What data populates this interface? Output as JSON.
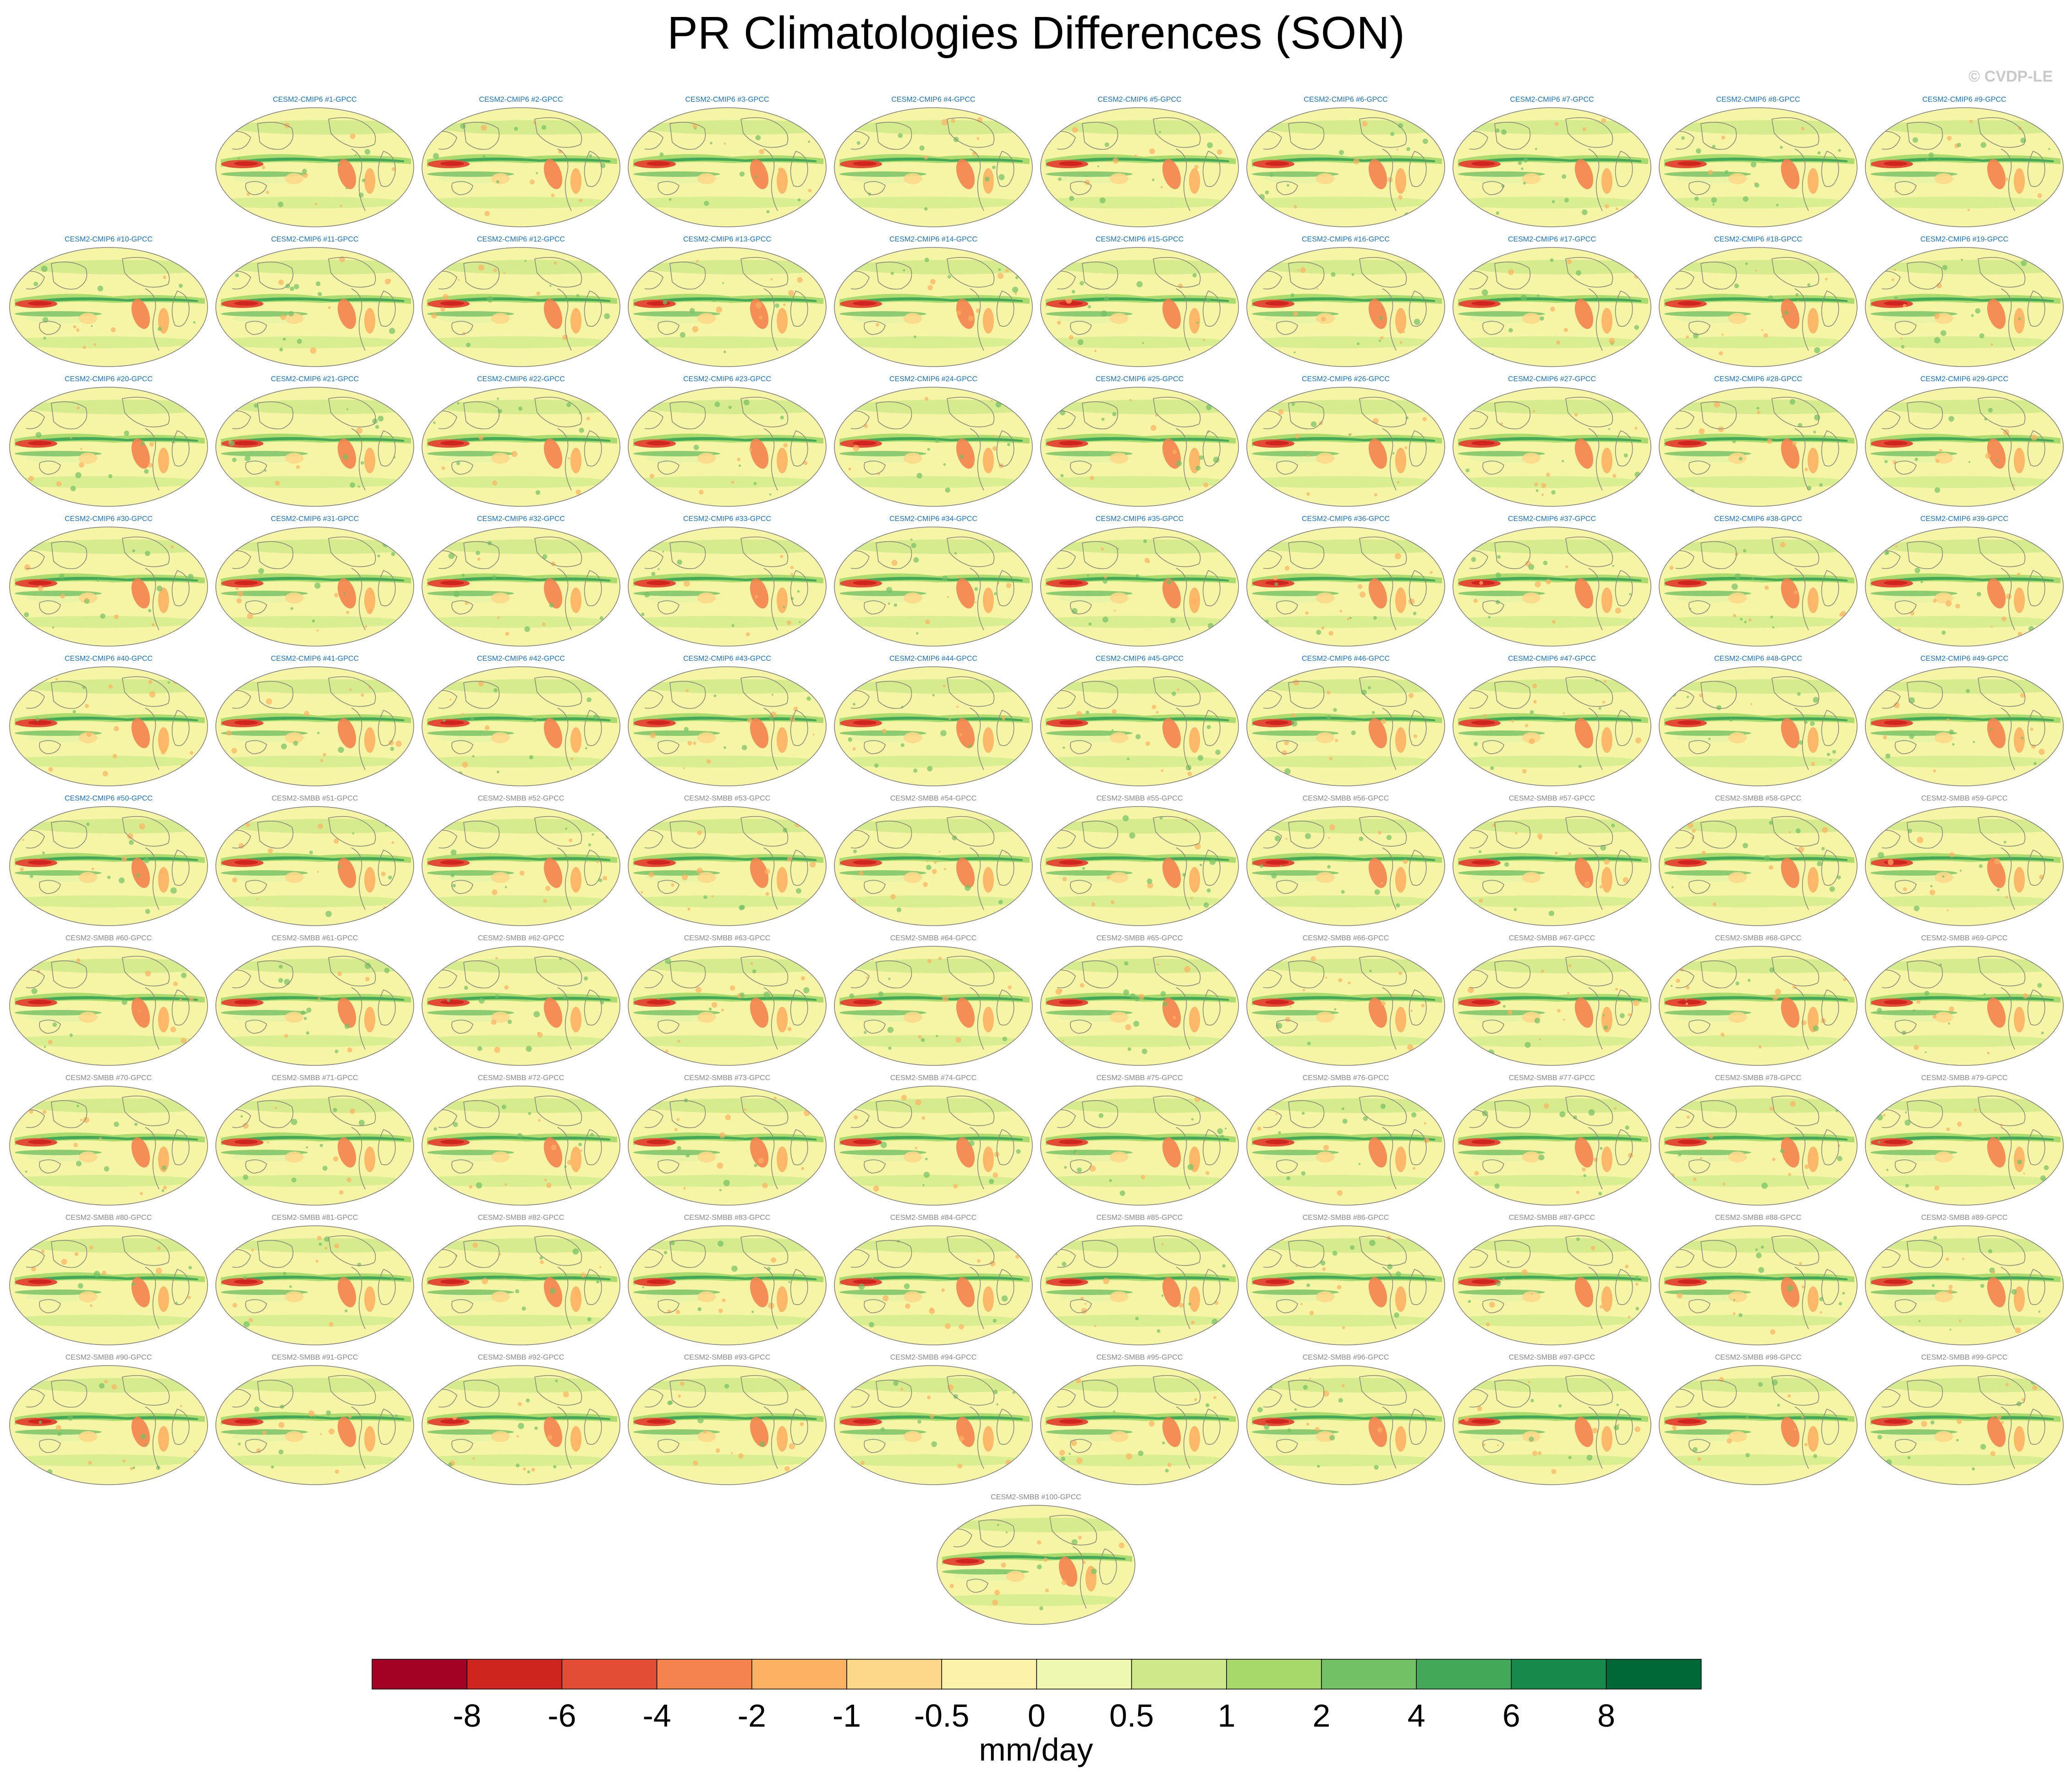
{
  "title": "PR Climatologies Differences (SON)",
  "watermark": "© CVDP-LE",
  "colors": {
    "label_cmip6": "#1f6fb0",
    "label_smbb": "#888888",
    "field_base": "#f6f5a6",
    "coastline": "#8a8a7a"
  },
  "chart_data": {
    "type": "map-grid",
    "projection": "robinson-global",
    "variable": "precipitation climatology difference (model - GPCC)",
    "panels": [
      "CESM2-CMIP6 #1-GPCC",
      "CESM2-CMIP6 #2-GPCC",
      "CESM2-CMIP6 #3-GPCC",
      "CESM2-CMIP6 #4-GPCC",
      "CESM2-CMIP6 #5-GPCC",
      "CESM2-CMIP6 #6-GPCC",
      "CESM2-CMIP6 #7-GPCC",
      "CESM2-CMIP6 #8-GPCC",
      "CESM2-CMIP6 #9-GPCC",
      "CESM2-CMIP6 #10-GPCC",
      "CESM2-CMIP6 #11-GPCC",
      "CESM2-CMIP6 #12-GPCC",
      "CESM2-CMIP6 #13-GPCC",
      "CESM2-CMIP6 #14-GPCC",
      "CESM2-CMIP6 #15-GPCC",
      "CESM2-CMIP6 #16-GPCC",
      "CESM2-CMIP6 #17-GPCC",
      "CESM2-CMIP6 #18-GPCC",
      "CESM2-CMIP6 #19-GPCC",
      "CESM2-CMIP6 #20-GPCC",
      "CESM2-CMIP6 #21-GPCC",
      "CESM2-CMIP6 #22-GPCC",
      "CESM2-CMIP6 #23-GPCC",
      "CESM2-CMIP6 #24-GPCC",
      "CESM2-CMIP6 #25-GPCC",
      "CESM2-CMIP6 #26-GPCC",
      "CESM2-CMIP6 #27-GPCC",
      "CESM2-CMIP6 #28-GPCC",
      "CESM2-CMIP6 #29-GPCC",
      "CESM2-CMIP6 #30-GPCC",
      "CESM2-CMIP6 #31-GPCC",
      "CESM2-CMIP6 #32-GPCC",
      "CESM2-CMIP6 #33-GPCC",
      "CESM2-CMIP6 #34-GPCC",
      "CESM2-CMIP6 #35-GPCC",
      "CESM2-CMIP6 #36-GPCC",
      "CESM2-CMIP6 #37-GPCC",
      "CESM2-CMIP6 #38-GPCC",
      "CESM2-CMIP6 #39-GPCC",
      "CESM2-CMIP6 #40-GPCC",
      "CESM2-CMIP6 #41-GPCC",
      "CESM2-CMIP6 #42-GPCC",
      "CESM2-CMIP6 #43-GPCC",
      "CESM2-CMIP6 #44-GPCC",
      "CESM2-CMIP6 #45-GPCC",
      "CESM2-CMIP6 #46-GPCC",
      "CESM2-CMIP6 #47-GPCC",
      "CESM2-CMIP6 #48-GPCC",
      "CESM2-CMIP6 #49-GPCC",
      "CESM2-CMIP6 #50-GPCC",
      "CESM2-SMBB #51-GPCC",
      "CESM2-SMBB #52-GPCC",
      "CESM2-SMBB #53-GPCC",
      "CESM2-SMBB #54-GPCC",
      "CESM2-SMBB #55-GPCC",
      "CESM2-SMBB #56-GPCC",
      "CESM2-SMBB #57-GPCC",
      "CESM2-SMBB #58-GPCC",
      "CESM2-SMBB #59-GPCC",
      "CESM2-SMBB #60-GPCC",
      "CESM2-SMBB #61-GPCC",
      "CESM2-SMBB #62-GPCC",
      "CESM2-SMBB #63-GPCC",
      "CESM2-SMBB #64-GPCC",
      "CESM2-SMBB #65-GPCC",
      "CESM2-SMBB #66-GPCC",
      "CESM2-SMBB #67-GPCC",
      "CESM2-SMBB #68-GPCC",
      "CESM2-SMBB #69-GPCC",
      "CESM2-SMBB #70-GPCC",
      "CESM2-SMBB #71-GPCC",
      "CESM2-SMBB #72-GPCC",
      "CESM2-SMBB #73-GPCC",
      "CESM2-SMBB #74-GPCC",
      "CESM2-SMBB #75-GPCC",
      "CESM2-SMBB #76-GPCC",
      "CESM2-SMBB #77-GPCC",
      "CESM2-SMBB #78-GPCC",
      "CESM2-SMBB #79-GPCC",
      "CESM2-SMBB #80-GPCC",
      "CESM2-SMBB #81-GPCC",
      "CESM2-SMBB #82-GPCC",
      "CESM2-SMBB #83-GPCC",
      "CESM2-SMBB #84-GPCC",
      "CESM2-SMBB #85-GPCC",
      "CESM2-SMBB #86-GPCC",
      "CESM2-SMBB #87-GPCC",
      "CESM2-SMBB #88-GPCC",
      "CESM2-SMBB #89-GPCC",
      "CESM2-SMBB #90-GPCC",
      "CESM2-SMBB #91-GPCC",
      "CESM2-SMBB #92-GPCC",
      "CESM2-SMBB #93-GPCC",
      "CESM2-SMBB #94-GPCC",
      "CESM2-SMBB #95-GPCC",
      "CESM2-SMBB #96-GPCC",
      "CESM2-SMBB #97-GPCC",
      "CESM2-SMBB #98-GPCC",
      "CESM2-SMBB #99-GPCC",
      "CESM2-SMBB #100-GPCC"
    ],
    "colorbar": {
      "units": "mm/day",
      "tick_labels": [
        "-8",
        "-6",
        "-4",
        "-2",
        "-1",
        "-0.5",
        "0",
        "0.5",
        "1",
        "2",
        "4",
        "6",
        "8"
      ],
      "colors": [
        "#a50026",
        "#d0251f",
        "#e34c35",
        "#f5834e",
        "#fdb162",
        "#fdd88a",
        "#fdf2aa",
        "#eff7b0",
        "#cfe98a",
        "#a7d96a",
        "#73c164",
        "#43a857",
        "#17894a",
        "#006837"
      ]
    }
  }
}
